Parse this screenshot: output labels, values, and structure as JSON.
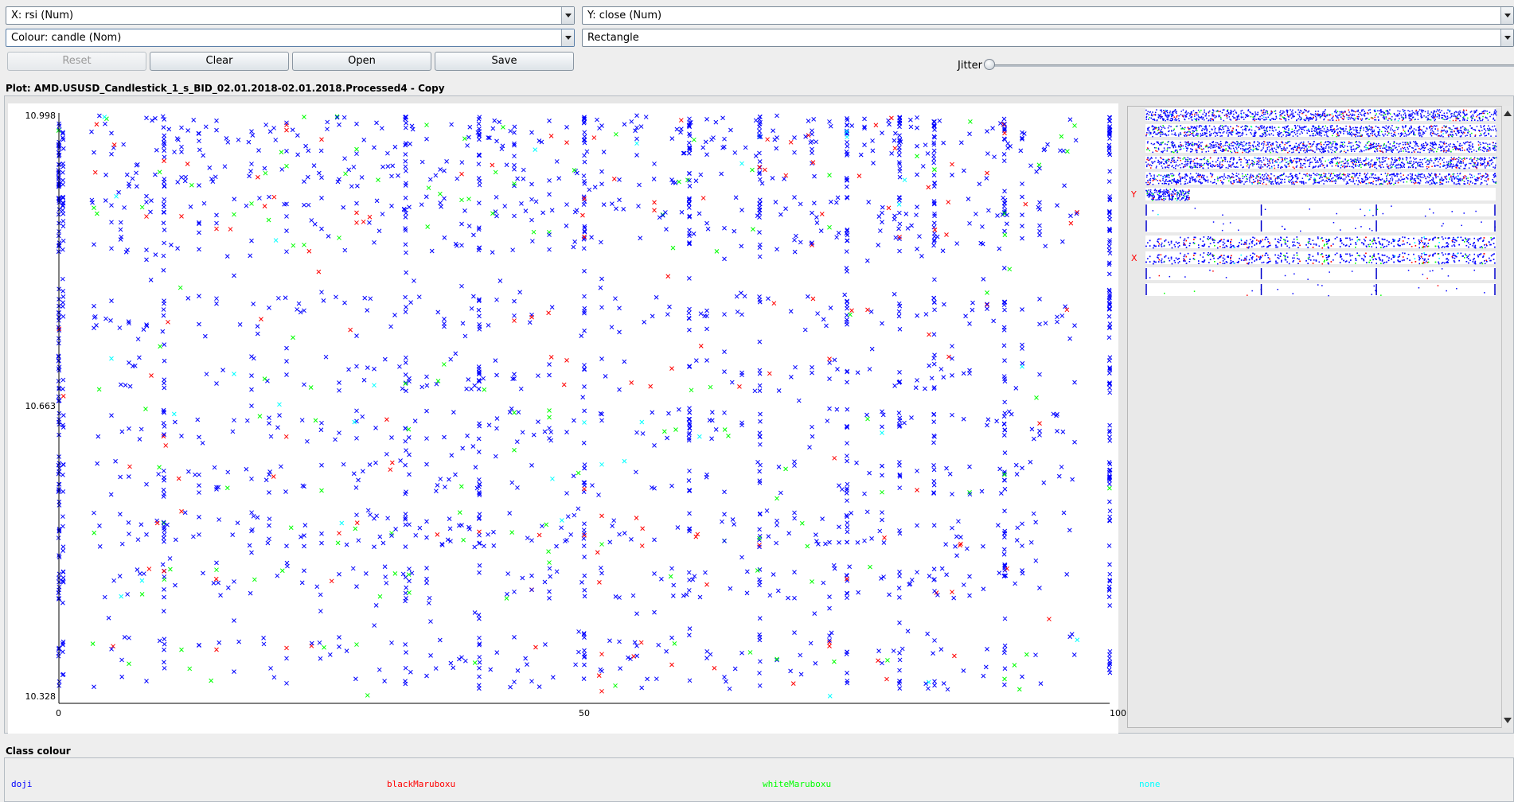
{
  "controls": {
    "x_axis_select": "X: rsi (Num)",
    "y_axis_select": "Y: close (Num)",
    "colour_select": "Colour: candle (Nom)",
    "shape_select": "Rectangle",
    "reset_label": "Reset",
    "clear_label": "Clear",
    "open_label": "Open",
    "save_label": "Save",
    "jitter_label": "Jitter",
    "jitter_value": 0
  },
  "plot": {
    "title": "Plot: AMD.USUSD_Candlestick_1_s_BID_02.01.2018-02.01.2018.Processed4 - Copy"
  },
  "chart_data": {
    "type": "scatter",
    "x_attribute": "rsi",
    "y_attribute": "close",
    "colour_attribute": "candle",
    "xlim": [
      0,
      100
    ],
    "ylim": [
      10.328,
      10.998
    ],
    "x_ticks": [
      "0",
      "50",
      "100"
    ],
    "y_ticks": [
      "10.998",
      "10.663",
      "10.328"
    ],
    "marker": "x",
    "series": [
      {
        "name": "doji",
        "color": "#0000ff"
      },
      {
        "name": "blackMaruboxu",
        "color": "#ff0000"
      },
      {
        "name": "whiteMaruboxu",
        "color": "#00ff00"
      },
      {
        "name": "none",
        "color": "#00ffff"
      }
    ]
  },
  "matrix": {
    "y_marker": "Y",
    "x_marker": "X",
    "y_row": 5,
    "x_row": 9
  },
  "legend": {
    "title": "Class colour",
    "items": [
      {
        "label": "doji",
        "color": "#0000ff"
      },
      {
        "label": "blackMaruboxu",
        "color": "#ff0000"
      },
      {
        "label": "whiteMaruboxu",
        "color": "#00ff00"
      },
      {
        "label": "none",
        "color": "#00ffff"
      }
    ]
  }
}
